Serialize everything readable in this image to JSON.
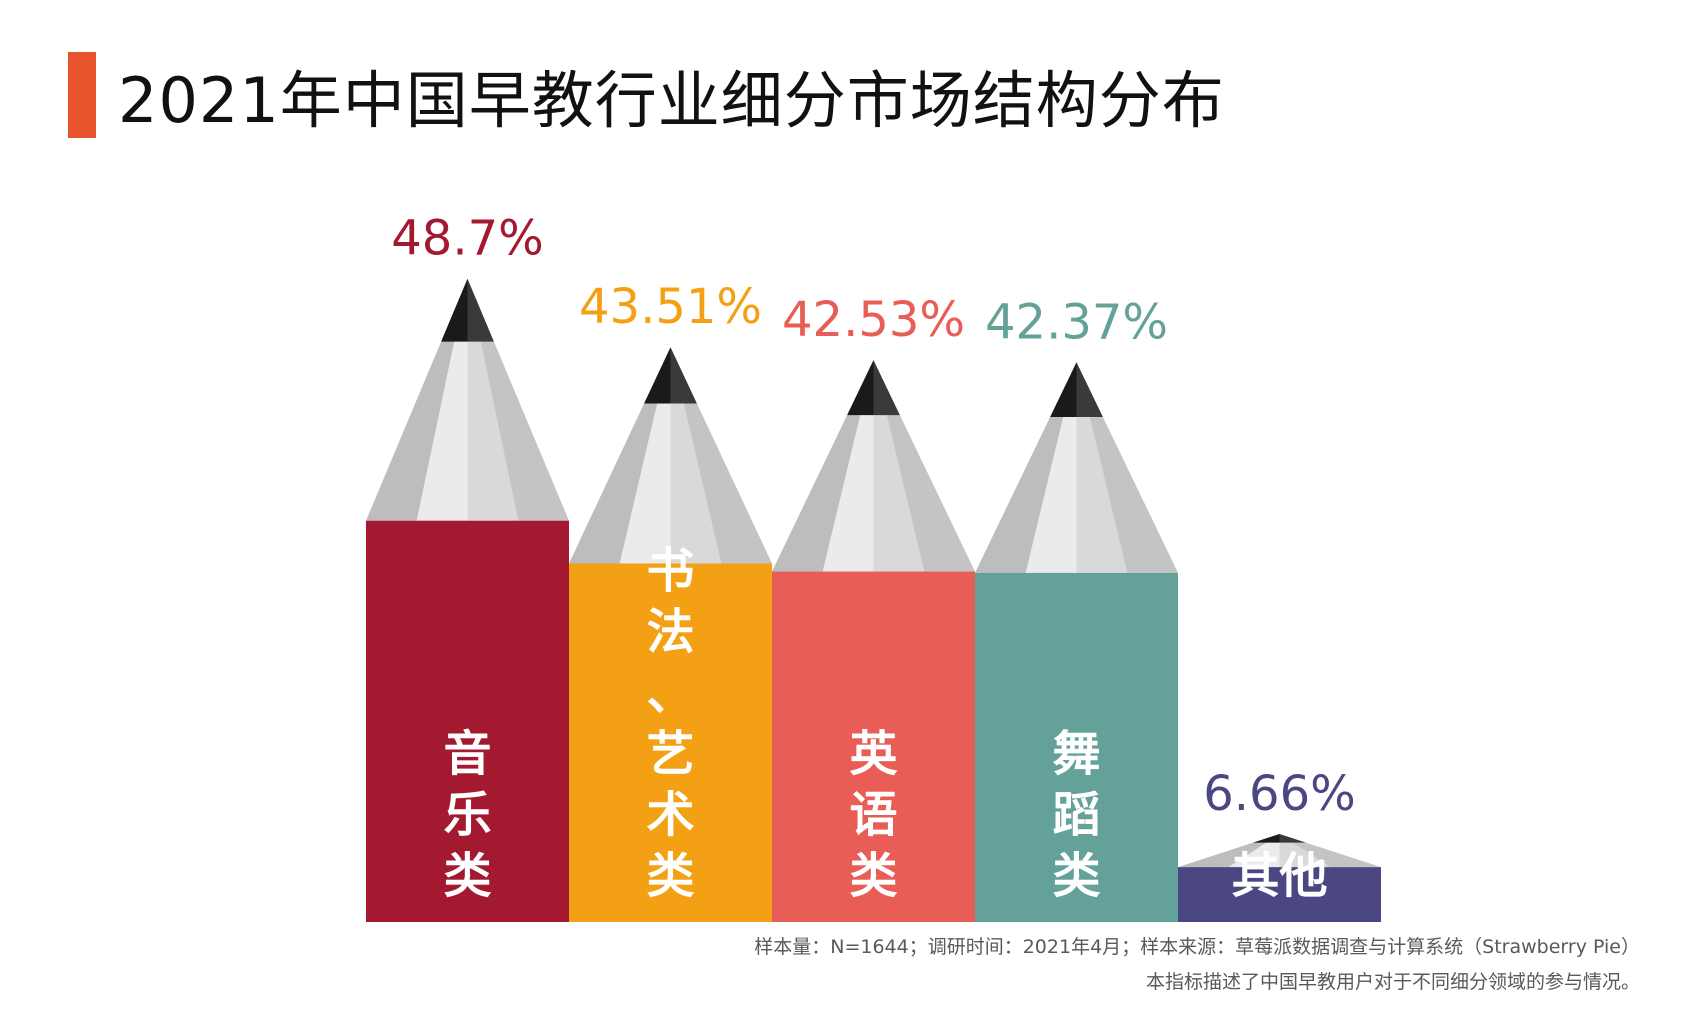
{
  "title": "2021年中国早教行业细分市场结构分布",
  "colors": {
    "accent": "#e8542e"
  },
  "chart_data": {
    "type": "bar",
    "categories": [
      "音乐类",
      "书法、艺术类",
      "英语类",
      "舞蹈类",
      "其他"
    ],
    "values": [
      48.7,
      43.51,
      42.53,
      42.37,
      6.66
    ],
    "value_labels": [
      "48.7%",
      "43.51%",
      "42.53%",
      "42.37%",
      "6.66%"
    ],
    "colors": [
      "#a3192f",
      "#f4a015",
      "#e85d55",
      "#64a199",
      "#4b4782"
    ],
    "category_glyph_rows": [
      [
        "音",
        "乐",
        "类"
      ],
      [
        "书",
        "法",
        "、",
        "艺",
        "术",
        "类"
      ],
      [
        "英",
        "语",
        "类"
      ],
      [
        "舞",
        "蹈",
        "类"
      ],
      [
        "其他"
      ]
    ],
    "style": "pencil",
    "grid": false,
    "legend": "none"
  },
  "footnotes": {
    "line1": "样本量：N=1644；调研时间：2021年4月；样本来源：草莓派数据调查与计算系统（Strawberry Pie）",
    "line2": "本指标描述了中国早教用户对于不同细分领域的参与情况。"
  }
}
